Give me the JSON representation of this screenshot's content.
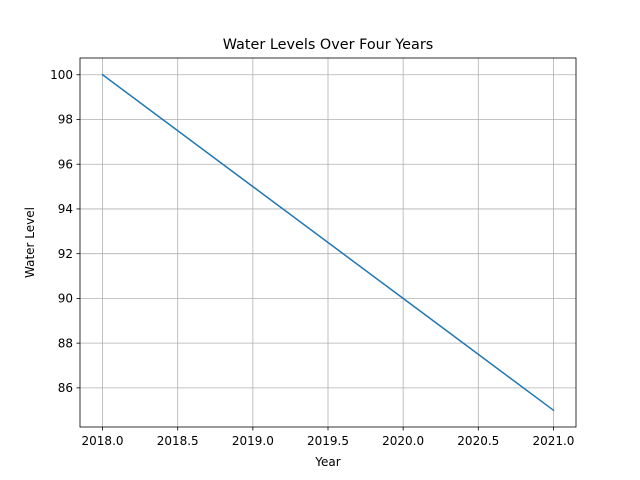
{
  "chart_data": {
    "type": "line",
    "title": "Water Levels Over Four Years",
    "xlabel": "Year",
    "ylabel": "Water Level",
    "x": [
      2018,
      2019,
      2020,
      2021
    ],
    "series": [
      {
        "values": [
          100,
          95,
          90,
          85
        ],
        "color": "#1f77b4"
      }
    ],
    "xlim": [
      2017.85,
      2021.15
    ],
    "ylim": [
      84.25,
      100.75
    ],
    "xticks": [
      2018.0,
      2018.5,
      2019.0,
      2019.5,
      2020.0,
      2020.5,
      2021.0
    ],
    "xtick_labels": [
      "2018.0",
      "2018.5",
      "2019.0",
      "2019.5",
      "2020.0",
      "2020.5",
      "2021.0"
    ],
    "yticks": [
      86,
      88,
      90,
      92,
      94,
      96,
      98,
      100
    ],
    "ytick_labels": [
      "86",
      "88",
      "90",
      "92",
      "94",
      "96",
      "98",
      "100"
    ],
    "grid": true,
    "grid_color": "#b0b0b0",
    "legend": false
  }
}
